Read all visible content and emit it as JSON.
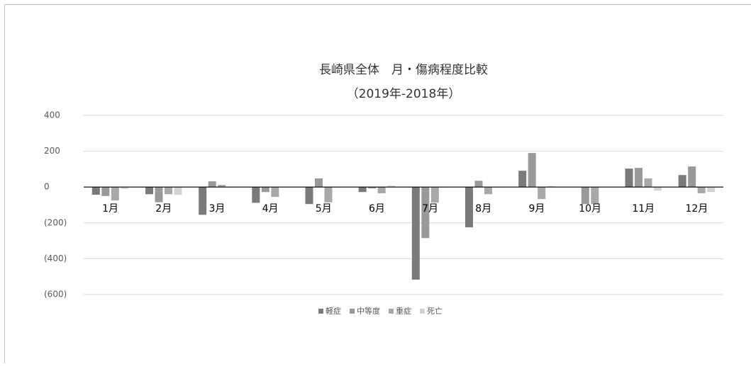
{
  "chart_data": {
    "type": "bar",
    "title": "長崎県全体　月・傷病程度比較",
    "subtitle": "（2019年-2018年）",
    "categories": [
      "1月",
      "2月",
      "3月",
      "4月",
      "5月",
      "6月",
      "7月",
      "8月",
      "9月",
      "10月",
      "11月",
      "12月"
    ],
    "series": [
      {
        "name": "軽症",
        "color": "#7a7a7a",
        "values": [
          -43,
          -40,
          -155,
          -88,
          -95,
          -28,
          -517,
          -225,
          91,
          0,
          103,
          67
        ]
      },
      {
        "name": "中等度",
        "color": "#999999",
        "values": [
          -50,
          -85,
          32,
          -28,
          48,
          -8,
          -285,
          35,
          190,
          -95,
          107,
          115
        ]
      },
      {
        "name": "重症",
        "color": "#a8a8a8",
        "values": [
          -75,
          -40,
          12,
          -55,
          -85,
          -35,
          -87,
          -40,
          -67,
          -95,
          48,
          -35
        ]
      },
      {
        "name": "死亡",
        "color": "#d2d2d2",
        "values": [
          -10,
          -43,
          -3,
          -3,
          -3,
          8,
          -3,
          -3,
          5,
          0,
          -20,
          -28
        ]
      }
    ],
    "ylim": [
      -600,
      400
    ],
    "yticks": [
      400,
      200,
      0,
      {
        "value": -200,
        "label": "(200)"
      },
      {
        "value": -400,
        "label": "(400)"
      },
      {
        "value": -600,
        "label": "(600)"
      }
    ],
    "grid": true,
    "legend": "bottom"
  }
}
